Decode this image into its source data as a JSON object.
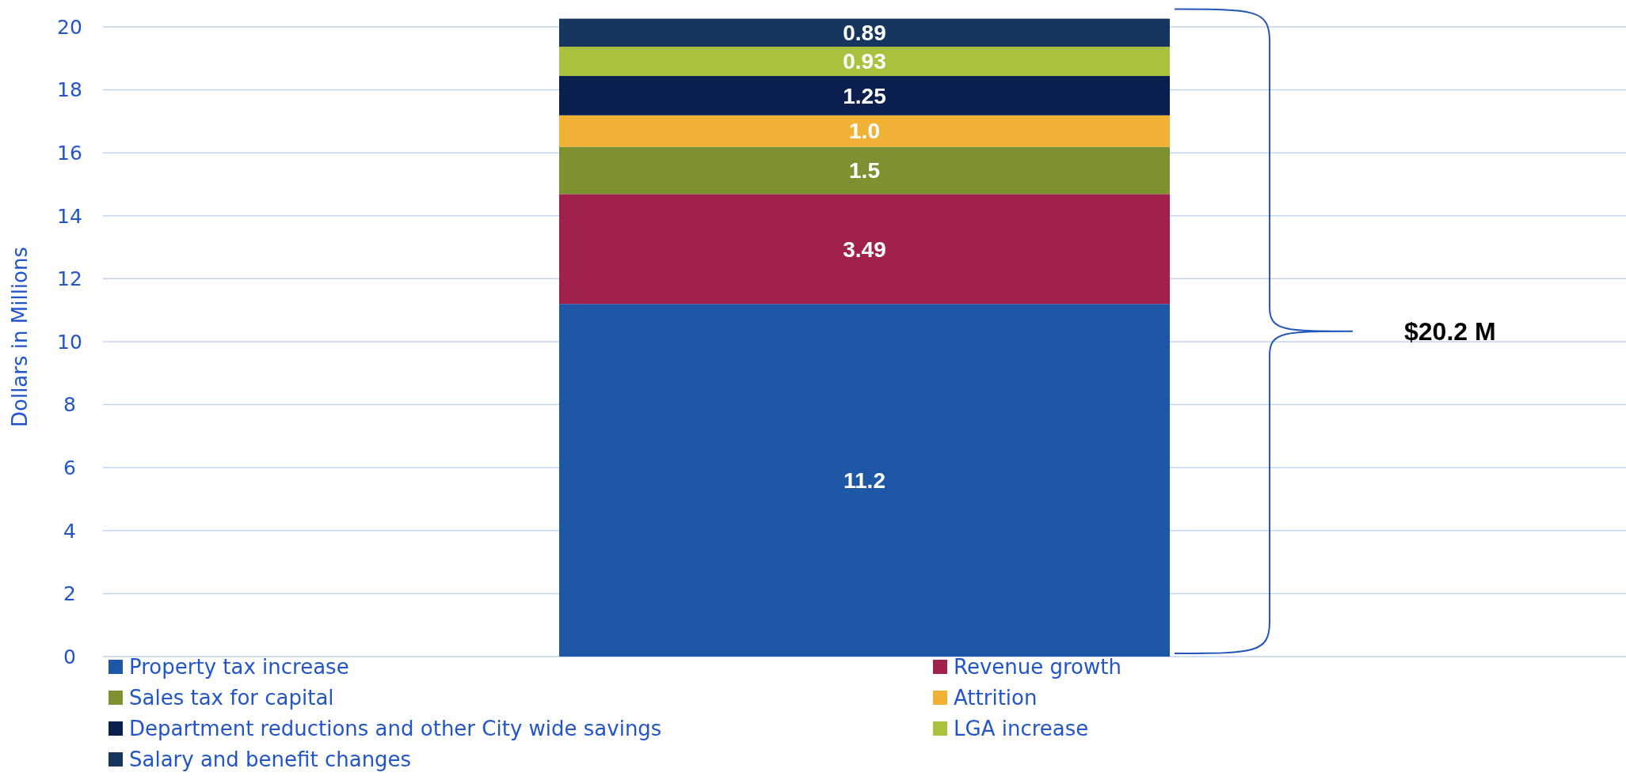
{
  "chart_data": {
    "type": "bar",
    "stacked": true,
    "ylabel": "Dollars in Millions",
    "categories": [
      null
    ],
    "series": [
      {
        "name": "Property tax increase",
        "color": "#1f57a7",
        "values": [
          11.2
        ],
        "value_labels": [
          "11.2"
        ]
      },
      {
        "name": "Revenue growth",
        "color": "#a0214d",
        "values": [
          3.49
        ],
        "value_labels": [
          "3.49"
        ]
      },
      {
        "name": "Sales tax for capital",
        "color": "#7e9130",
        "values": [
          1.5
        ],
        "value_labels": [
          "1.5"
        ]
      },
      {
        "name": "Attrition",
        "color": "#f0b134",
        "values": [
          1.0
        ],
        "value_labels": [
          "1.0"
        ]
      },
      {
        "name": "Department reductions and other City wide savings",
        "color": "#0a1f4d",
        "values": [
          1.25
        ],
        "value_labels": [
          "1.25"
        ]
      },
      {
        "name": "LGA increase",
        "color": "#a8c23f",
        "values": [
          0.93
        ],
        "value_labels": [
          "0.93"
        ]
      },
      {
        "name": "Salary and benefit changes",
        "color": "#16365f",
        "values": [
          0.89
        ],
        "value_labels": [
          "0.89"
        ]
      }
    ],
    "ylim": [
      0,
      20.3
    ],
    "yticks": [
      0,
      2,
      4,
      6,
      8,
      10,
      12,
      14,
      16,
      18,
      20
    ],
    "grid": "y",
    "legend": "bottom",
    "annotations": [
      "$20.2 M"
    ]
  }
}
